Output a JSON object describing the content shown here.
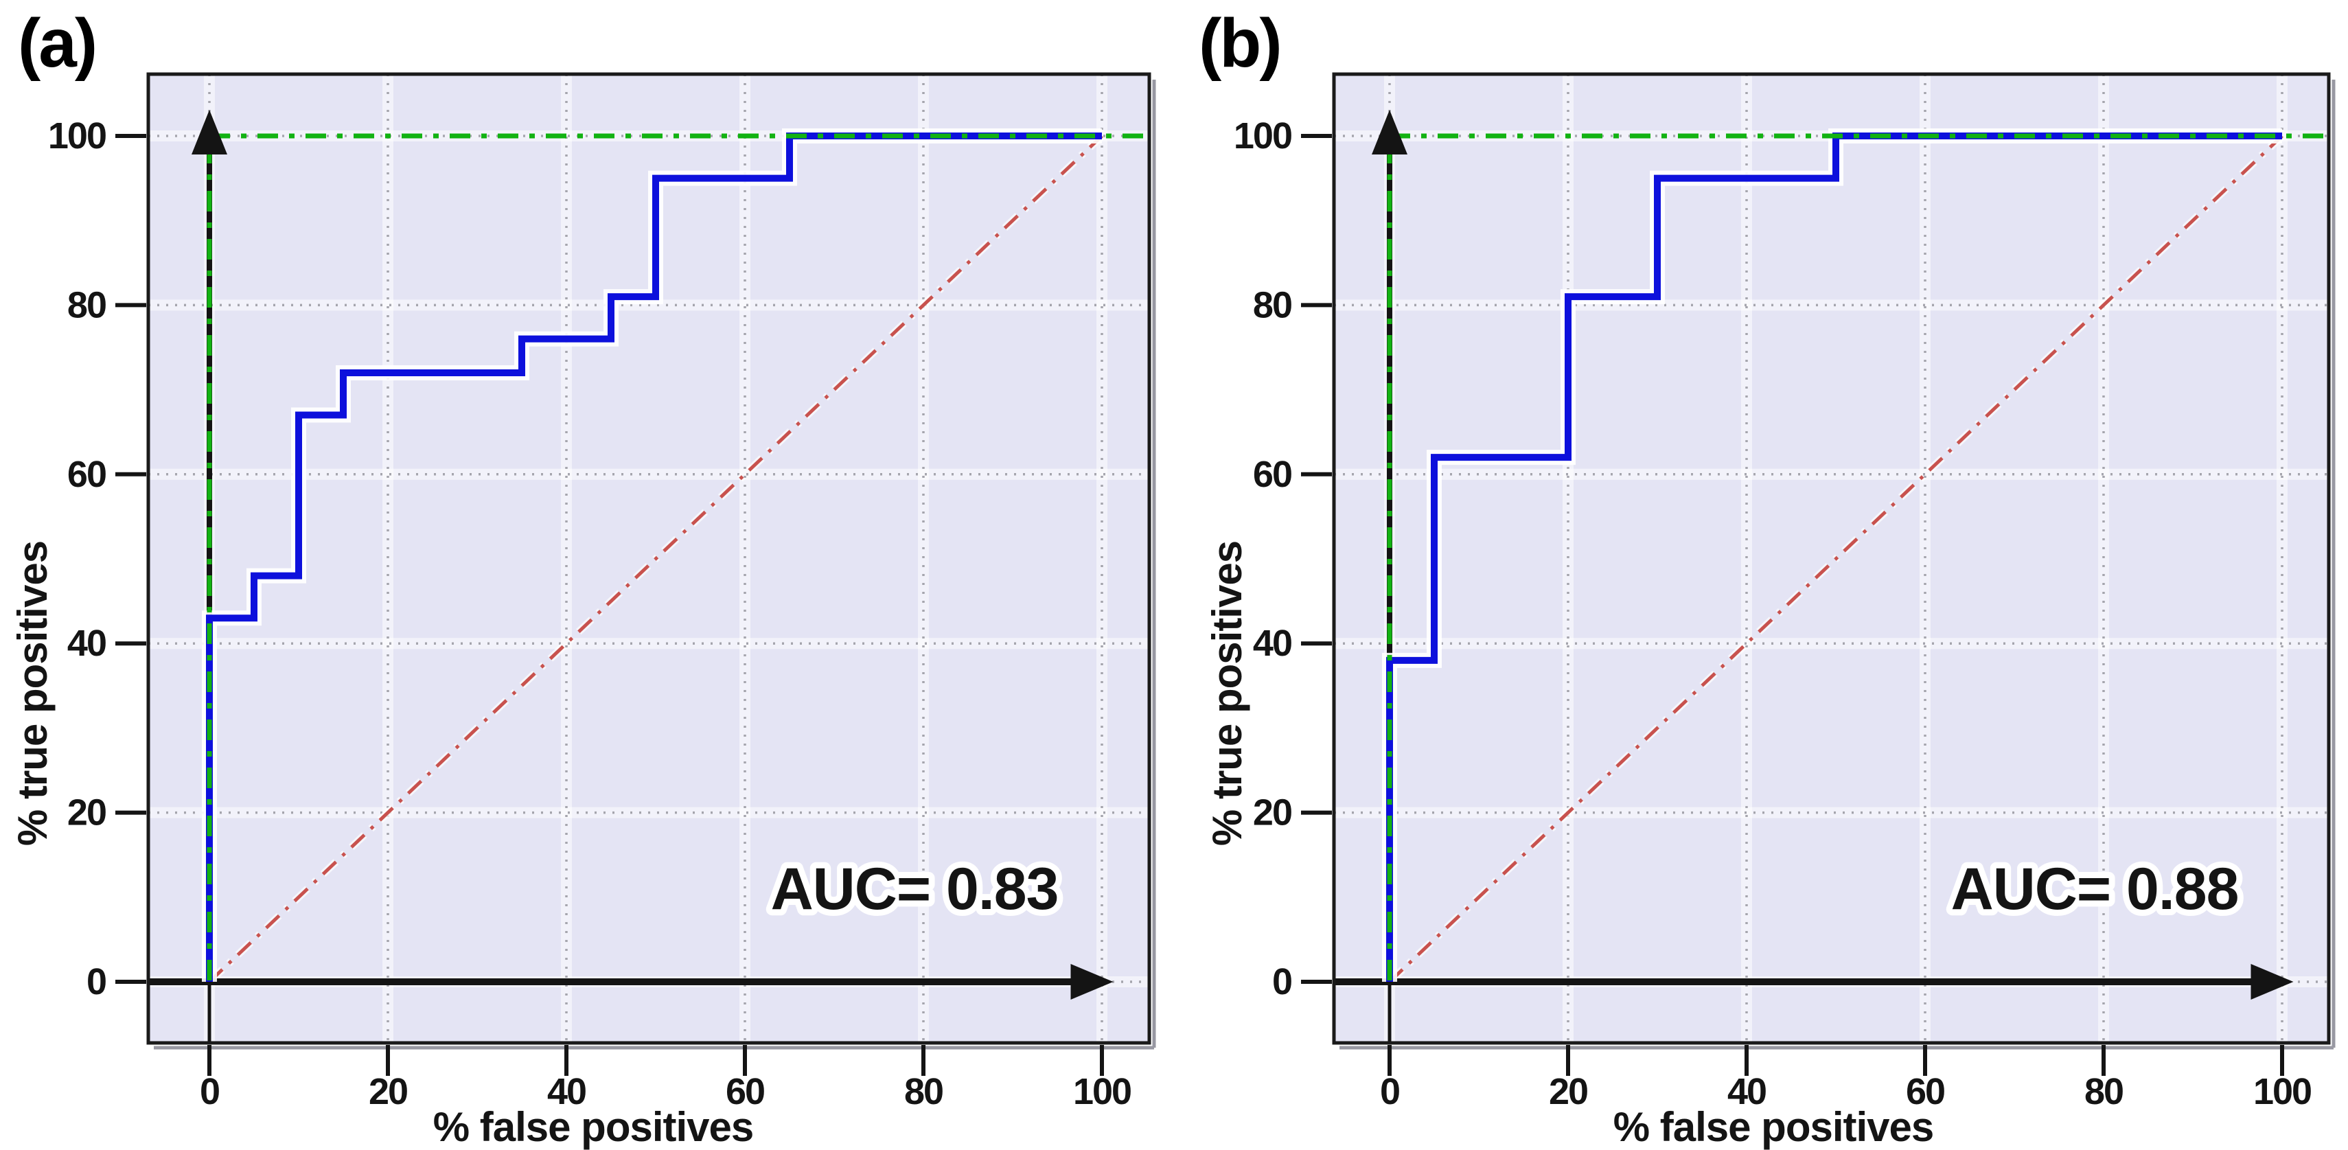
{
  "colors": {
    "roc_curve": "#0d10dc",
    "diagonal": "#c8524e",
    "reference": "#12b212",
    "axis": "#141414",
    "grid_dots": "#a5a5ad",
    "plot_bg": "#e4e4f4",
    "text": "#141414",
    "halo": "#ffffff",
    "border_shadow": "#9898a2"
  },
  "chart_data": [
    {
      "type": "line",
      "subtype": "roc_step",
      "panel_label": "(a)",
      "xlabel": "% false positives",
      "ylabel": "% true positives",
      "xlim": [
        -7,
        106
      ],
      "ylim": [
        -7,
        107
      ],
      "xticks": [
        0,
        20,
        40,
        60,
        80,
        100
      ],
      "yticks": [
        0,
        20,
        40,
        60,
        80,
        100
      ],
      "grid": true,
      "annotation": {
        "text": "AUC= 0.83",
        "value": 0.83
      },
      "series": [
        {
          "name": "ROC curve",
          "role": "roc",
          "x": [
            0,
            0,
            5,
            5,
            10,
            10,
            15,
            15,
            35,
            35,
            45,
            45,
            50,
            50,
            65,
            65,
            100
          ],
          "y": [
            0,
            43,
            43,
            48,
            48,
            67,
            67,
            72,
            72,
            76,
            76,
            81,
            81,
            95,
            95,
            100,
            100
          ]
        },
        {
          "name": "chance diagonal",
          "role": "diagonal",
          "style": "dash-dot",
          "x": [
            0,
            100
          ],
          "y": [
            0,
            100
          ]
        },
        {
          "name": "perfect classifier reference",
          "role": "reference_top",
          "style": "dash-dot",
          "x": [
            0,
            100
          ],
          "y": [
            100,
            100
          ]
        },
        {
          "name": "reference vertical",
          "role": "reference_left",
          "style": "dash-dot",
          "x": [
            0,
            0
          ],
          "y": [
            0,
            100
          ]
        }
      ]
    },
    {
      "type": "line",
      "subtype": "roc_step",
      "panel_label": "(b)",
      "xlabel": "% false positives",
      "ylabel": "% true positives",
      "xlim": [
        -7,
        106
      ],
      "ylim": [
        -7,
        107
      ],
      "xticks": [
        0,
        20,
        40,
        60,
        80,
        100
      ],
      "yticks": [
        0,
        20,
        40,
        60,
        80,
        100
      ],
      "grid": true,
      "annotation": {
        "text": "AUC= 0.88",
        "value": 0.88
      },
      "series": [
        {
          "name": "ROC curve",
          "role": "roc",
          "x": [
            0,
            0,
            5,
            5,
            20,
            20,
            30,
            30,
            50,
            50,
            100
          ],
          "y": [
            0,
            38,
            38,
            62,
            62,
            81,
            81,
            95,
            95,
            100,
            100
          ]
        },
        {
          "name": "chance diagonal",
          "role": "diagonal",
          "style": "dash-dot",
          "x": [
            0,
            100
          ],
          "y": [
            0,
            100
          ]
        },
        {
          "name": "perfect classifier reference",
          "role": "reference_top",
          "style": "dash-dot",
          "x": [
            0,
            100
          ],
          "y": [
            100,
            100
          ]
        },
        {
          "name": "reference vertical",
          "role": "reference_left",
          "style": "dash-dot",
          "x": [
            0,
            0
          ],
          "y": [
            0,
            100
          ]
        }
      ]
    }
  ]
}
